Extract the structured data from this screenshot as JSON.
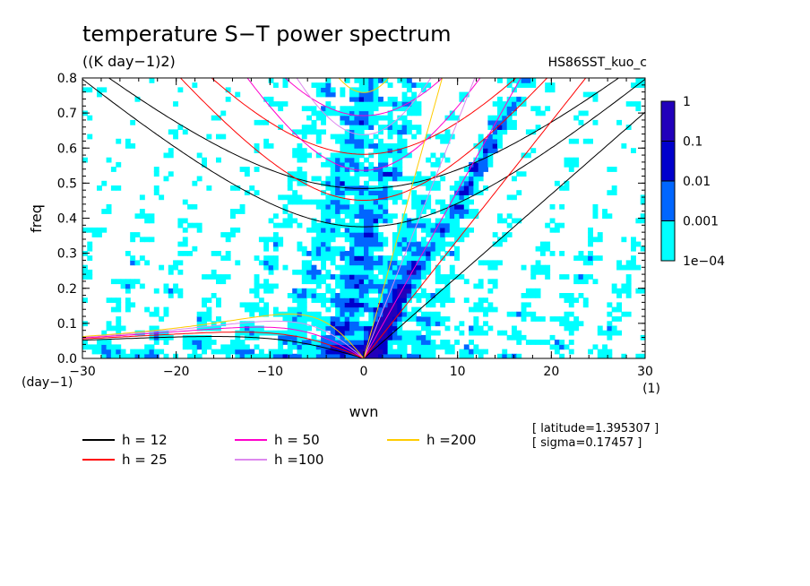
{
  "chart_data": {
    "type": "heatmap",
    "title": "temperature S−T power spectrum",
    "units_label": "((K day−1)2)",
    "run_label": "HS86SST_kuo_c",
    "xlabel": "wvn",
    "ylabel": "freq",
    "x_unit_label": "(1)",
    "y_unit_label": "(day−1)",
    "xlim": [
      -30,
      30
    ],
    "ylim": [
      0,
      0.8
    ],
    "xticks": [
      -30,
      -20,
      -10,
      0,
      10,
      20,
      30
    ],
    "yticks": [
      0.0,
      0.1,
      0.2,
      0.3,
      0.4,
      0.5,
      0.6,
      0.7,
      0.8
    ],
    "ytick_labels": [
      "0.0",
      "0.1",
      "0.2",
      "0.3",
      "0.4",
      "0.5",
      "0.6",
      "0.7",
      "0.8"
    ],
    "colorbar": {
      "levels": [
        0.0001,
        0.001,
        0.01,
        0.1,
        1
      ],
      "labels": [
        "1e−04",
        "0.001",
        "0.01",
        "0.1",
        "1"
      ],
      "colors": [
        "#00ffff",
        "#0066ff",
        "#0000cc",
        "#2200bb"
      ]
    },
    "dispersion_curves": [
      {
        "label": "h = 12",
        "h": 12,
        "color": "#000000"
      },
      {
        "label": "h = 25",
        "h": 25,
        "color": "#ff0000"
      },
      {
        "label": "h = 50",
        "h": 50,
        "color": "#ff00cc"
      },
      {
        "label": "h =100",
        "h": 100,
        "color": "#dd88ee"
      },
      {
        "label": "h =200",
        "h": 200,
        "color": "#ffcc00"
      }
    ],
    "annotations": [
      "[ latitude=1.395307 ]",
      "[ sigma=0.17457 ]"
    ]
  }
}
